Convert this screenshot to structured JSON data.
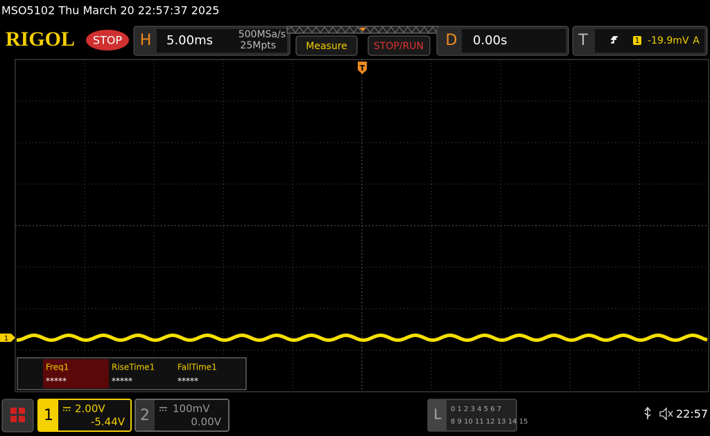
{
  "header": {
    "title": "MSO5102  Thu March 20 22:57:37 2025"
  },
  "toolbar": {
    "logo": "RIGOL",
    "state": "STOP",
    "horizontal": {
      "label": "H",
      "scale": "5.00ms",
      "sample_rate": "500MSa/s",
      "memory": "25Mpts"
    },
    "measure_button": "Measure",
    "stop_run_button": "STOP/RUN",
    "delay": {
      "label": "D",
      "value": "0.00s"
    },
    "trigger": {
      "label": "T",
      "source": "1",
      "level": "-19.9mV",
      "mode": "A"
    }
  },
  "screen": {
    "trigger_marker": "T",
    "channel_marker": "1"
  },
  "measurements": [
    {
      "name": "Freq1",
      "value": "*****"
    },
    {
      "name": "RiseTime1",
      "value": "*****"
    },
    {
      "name": "FallTime1",
      "value": "*****"
    }
  ],
  "channels": [
    {
      "label": "1",
      "scale": "2.00V",
      "offset": "-5.44V"
    },
    {
      "label": "2",
      "scale": "100mV",
      "offset": "0.00V"
    }
  ],
  "logic": {
    "label": "L",
    "row1": "0 1 2 3  4 5 6 7",
    "row2": "8 9 10 11 12 13 14 15"
  },
  "status": {
    "time": "22:57"
  }
}
